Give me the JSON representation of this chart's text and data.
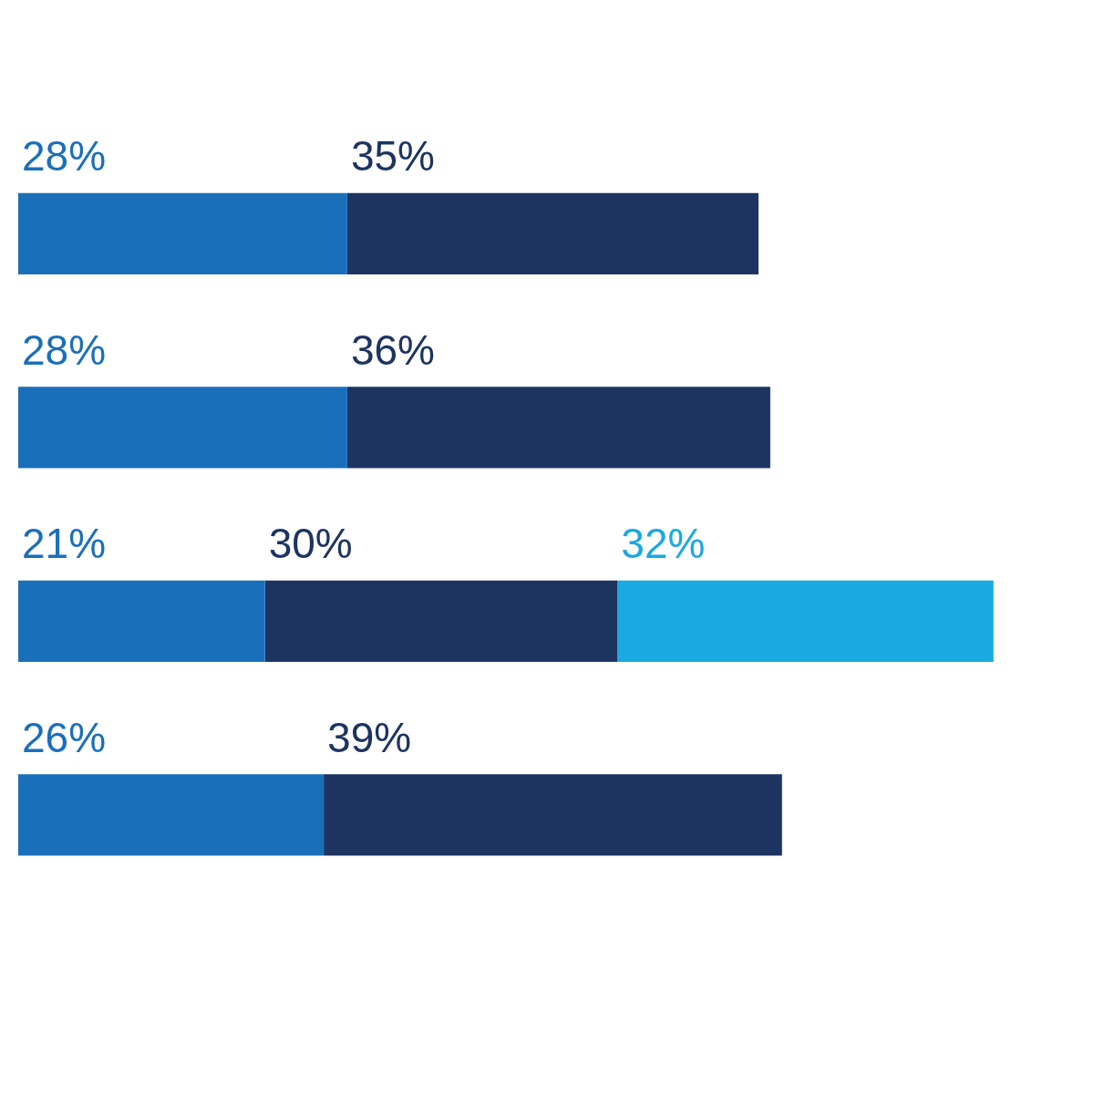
{
  "chart_data": {
    "type": "bar",
    "orientation": "horizontal",
    "stacked": true,
    "categories": [
      null,
      null,
      null,
      null
    ],
    "series": [
      {
        "color": "#1a6fbb",
        "values": [
          28,
          28,
          21,
          26
        ],
        "value_labels": [
          "28%",
          "28%",
          "21%",
          "26%"
        ]
      },
      {
        "color": "#1d3461",
        "values": [
          35,
          36,
          30,
          39
        ],
        "value_labels": [
          "35%",
          "36%",
          "30%",
          "39%"
        ]
      },
      {
        "color": "#1aa9e0",
        "values": [
          null,
          null,
          32,
          null
        ],
        "value_labels": [
          null,
          null,
          "32%",
          null
        ]
      }
    ]
  }
}
